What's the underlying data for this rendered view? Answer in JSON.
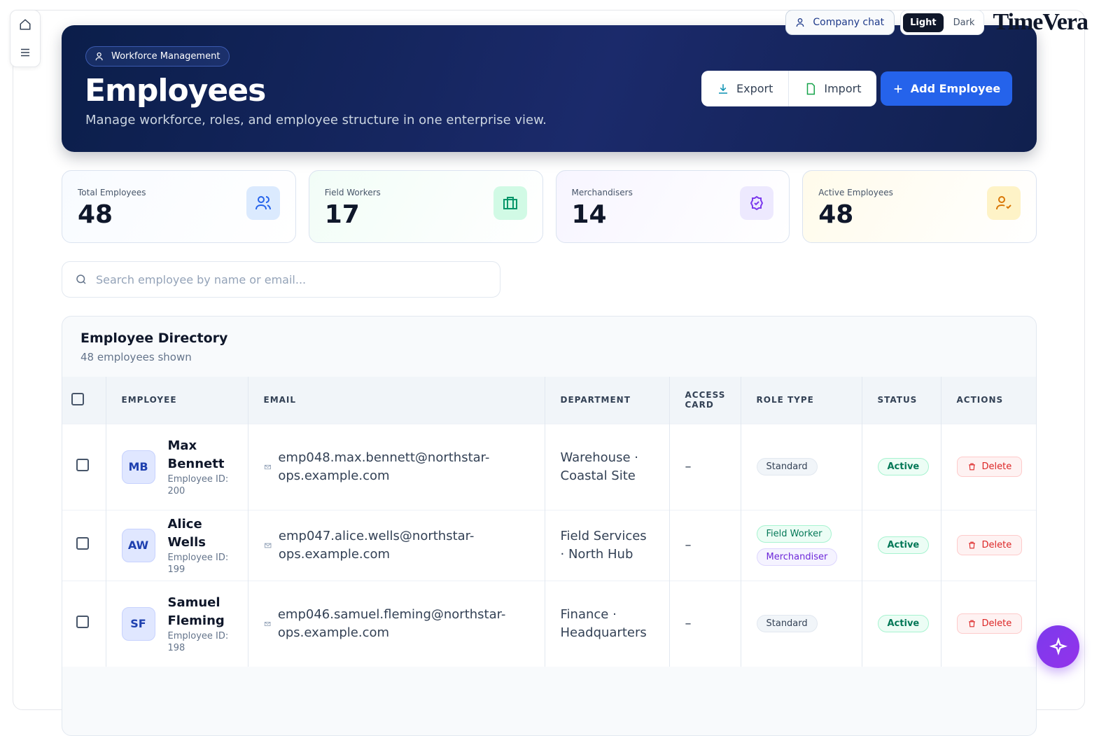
{
  "topbar": {
    "company_chat": "Company chat",
    "theme_light": "Light",
    "theme_dark": "Dark",
    "logo": "TimeVera"
  },
  "header": {
    "badge": "Workforce Management",
    "title": "Employees",
    "subtitle": "Manage workforce, roles, and employee structure in one enterprise view.",
    "export": "Export",
    "import": "Import",
    "add_employee": "Add Employee"
  },
  "stats": [
    {
      "label": "Total Employees",
      "value": 48
    },
    {
      "label": "Field Workers",
      "value": 17
    },
    {
      "label": "Merchandisers",
      "value": 14
    },
    {
      "label": "Active Employees",
      "value": 48
    }
  ],
  "search": {
    "placeholder": "Search employee by name or email..."
  },
  "directory": {
    "title": "Employee Directory",
    "count": "48 employees shown",
    "columns": [
      "EMPLOYEE",
      "EMAIL",
      "DEPARTMENT",
      "ACCESS CARD",
      "ROLE TYPE",
      "STATUS",
      "ACTIONS"
    ],
    "rows": [
      {
        "initials": "MB",
        "name": "Max Bennett",
        "employee_id": "Employee ID: 200",
        "email": "emp048.max.bennett@northstar-ops.example.com",
        "department": "Warehouse · Coastal Site",
        "access_card": "–",
        "roles": [
          "Standard"
        ],
        "status": "Active",
        "action": "Delete"
      },
      {
        "initials": "AW",
        "name": "Alice Wells",
        "employee_id": "Employee ID: 199",
        "email": "emp047.alice.wells@northstar-ops.example.com",
        "department": "Field Services · North Hub",
        "access_card": "–",
        "roles": [
          "Field Worker",
          "Merchandiser"
        ],
        "status": "Active",
        "action": "Delete"
      },
      {
        "initials": "SF",
        "name": "Samuel Fleming",
        "employee_id": "Employee ID: 198",
        "email": "emp046.samuel.fleming@northstar-ops.example.com",
        "department": "Finance · Headquarters",
        "access_card": "–",
        "roles": [
          "Standard"
        ],
        "status": "Active",
        "action": "Delete"
      }
    ]
  }
}
